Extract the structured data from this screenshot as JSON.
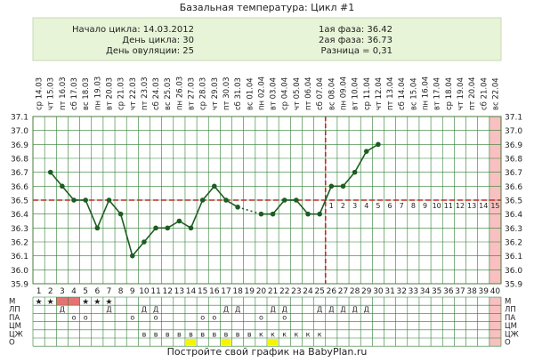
{
  "title": "Базальная температура: Цикл #1",
  "info": {
    "left": [
      {
        "label": "Начало цикла:",
        "value": "14.03.2012"
      },
      {
        "label": "День цикла:",
        "value": "30"
      },
      {
        "label": "День овуляции:",
        "value": "25"
      }
    ],
    "right": [
      {
        "label": "1ая фаза:",
        "value": "36.42"
      },
      {
        "label": "2ая фаза:",
        "value": "36.73"
      },
      {
        "label": "Разница =",
        "value": "0,31"
      }
    ]
  },
  "footer": "Постройте свой график на BabyPlan.ru",
  "colors": {
    "info_bg": "#e8f4d8",
    "grid": "#2e7d32",
    "line": "#1b5e20",
    "coverline": "#c62828",
    "ovulation_line": "#c62828",
    "phase2_numbers": "#e57373",
    "period_fill": "#e57373",
    "future_fill": "#f8c0c0",
    "sticky_fill": "#f5f500"
  },
  "chart_data": {
    "type": "line",
    "ylim": [
      35.9,
      37.1
    ],
    "y_ticks": [
      "35.9",
      "36.0",
      "36.1",
      "36.2",
      "36.3",
      "36.4",
      "36.5",
      "36.6",
      "36.7",
      "36.8",
      "36.9",
      "37.0",
      "37.1"
    ],
    "x_days": [
      1,
      2,
      3,
      4,
      5,
      6,
      7,
      8,
      9,
      10,
      11,
      12,
      13,
      14,
      15,
      16,
      17,
      18,
      19,
      20,
      21,
      22,
      23,
      24,
      25,
      26,
      27,
      28,
      29,
      30,
      31,
      32,
      33,
      34,
      35,
      36,
      37,
      38,
      39,
      40
    ],
    "dates": [
      "14.03",
      "15.03",
      "16.03",
      "17.03",
      "18.03",
      "19.03",
      "20.03",
      "21.03",
      "22.03",
      "23.03",
      "24.03",
      "25.03",
      "26.03",
      "27.03",
      "28.03",
      "29.03",
      "30.03",
      "31.03",
      "01.04",
      "02.04",
      "03.04",
      "04.04",
      "05.04",
      "06.04",
      "07.04",
      "08.04",
      "09.04",
      "10.04",
      "11.04",
      "12.04",
      "13.04",
      "14.04",
      "15.04",
      "16.04",
      "17.04",
      "18.04",
      "19.04",
      "20.04",
      "21.04",
      "22.04"
    ],
    "weekdays": [
      "ср",
      "чт",
      "пт",
      "сб",
      "вс",
      "пн",
      "вт",
      "ср",
      "чт",
      "пт",
      "сб",
      "вс",
      "пн",
      "вт",
      "ср",
      "чт",
      "пт",
      "сб",
      "вс",
      "пн",
      "вт",
      "ср",
      "чт",
      "пт",
      "сб",
      "вс",
      "пн",
      "вт",
      "ср",
      "чт",
      "пт",
      "сб",
      "вс",
      "пн",
      "вт",
      "ср",
      "чт",
      "пт",
      "сб",
      "вс"
    ],
    "series": [
      {
        "values": [
          null,
          36.7,
          36.6,
          36.5,
          36.5,
          36.3,
          36.5,
          36.4,
          36.1,
          36.2,
          36.3,
          36.3,
          36.35,
          36.3,
          36.5,
          36.6,
          36.5,
          36.45,
          null,
          36.4,
          36.4,
          36.5,
          36.5,
          36.4,
          36.4,
          36.6,
          36.6,
          36.7,
          36.85,
          36.9,
          null,
          null,
          null,
          null,
          null,
          null,
          null,
          null,
          null,
          null
        ]
      }
    ],
    "dotted_segments": [
      [
        18,
        20
      ]
    ],
    "coverline": 36.5,
    "ovulation_day": 25,
    "phase2_day_numbers": [
      "1",
      "2",
      "3",
      "4",
      "5",
      "6",
      "7",
      "8",
      "9",
      "10",
      "11",
      "12",
      "13",
      "14",
      "15"
    ],
    "marker_rows": {
      "labels": [
        "М",
        "ЛП",
        "ПА",
        "ЦМ",
        "ЦЖ",
        "О"
      ],
      "right_labels": [
        "М",
        "ЛП",
        "ПА",
        "ЦМ",
        "ЦЖ",
        "О"
      ],
      "M": {
        "stars": [
          1,
          2,
          5,
          6,
          7
        ],
        "period_days": [
          3,
          4
        ]
      },
      "LP": {
        "text": "Д",
        "days": [
          3,
          7,
          10,
          11,
          17,
          18,
          21,
          22,
          25,
          26,
          27,
          28,
          29
        ]
      },
      "PA": {
        "text": "о",
        "days": [
          4,
          5,
          9,
          11,
          15,
          16,
          20,
          22
        ]
      },
      "TsZh": {
        "text": "в",
        "days": [
          10,
          11,
          12,
          13,
          14,
          15,
          16,
          17,
          18,
          19,
          20,
          21,
          22,
          23,
          24,
          25
        ]
      },
      "TsZh_K_days": [
        20,
        21,
        22,
        23,
        24,
        25
      ],
      "O_sticky_days": [
        14,
        17,
        21
      ]
    }
  }
}
